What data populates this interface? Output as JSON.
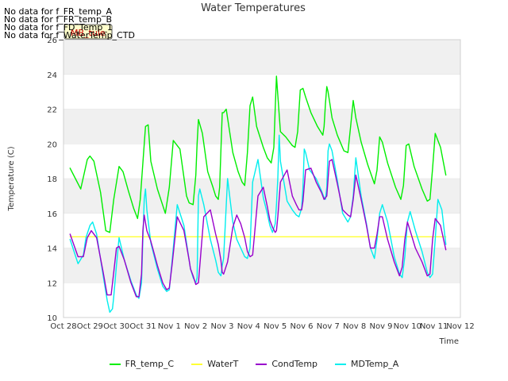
{
  "no_data_messages": [
    "No data for f_FR_temp_A",
    "No data for f_FR_temp_B",
    "No data for f_FD_Temp_1",
    "No data for f_WaterTemp_CTD"
  ],
  "tooltip_label": "MB_tule",
  "chart_data": {
    "type": "line",
    "title": "Water Temperatures",
    "xlabel": "Time",
    "ylabel": "Temperature (C)",
    "x_ticks": [
      "Oct 28",
      "Oct 29",
      "Oct 30",
      "Oct 31",
      "Nov 1",
      "Nov 2",
      "Nov 3",
      "Nov 4",
      "Nov 5",
      "Nov 6",
      "Nov 7",
      "Nov 8",
      "Nov 9",
      "Nov 10",
      "Nov 11",
      "Nov 12"
    ],
    "y_ticks": [
      10,
      12,
      14,
      16,
      18,
      20,
      22,
      24,
      26
    ],
    "xlim": [
      0,
      15
    ],
    "ylim": [
      10,
      26
    ],
    "grid": true,
    "legend_position": "bottom",
    "x_units": "days since Oct 28",
    "series": [
      {
        "name": "FR_temp_C",
        "color": "#00ee00",
        "x": [
          0.25,
          0.45,
          0.65,
          0.9,
          1.0,
          1.15,
          1.4,
          1.6,
          1.75,
          1.9,
          2.1,
          2.25,
          2.45,
          2.65,
          2.8,
          2.9,
          3.0,
          3.1,
          3.2,
          3.3,
          3.55,
          3.85,
          4.0,
          4.15,
          4.4,
          4.65,
          4.75,
          4.9,
          5.0,
          5.05,
          5.1,
          5.25,
          5.45,
          5.65,
          5.75,
          5.85,
          5.9,
          5.95,
          6.0,
          6.05,
          6.15,
          6.4,
          6.6,
          6.75,
          6.85,
          6.95,
          7.05,
          7.15,
          7.3,
          7.55,
          7.7,
          7.85,
          7.95,
          8.0,
          8.05,
          8.1,
          8.2,
          8.4,
          8.65,
          8.75,
          8.85,
          8.95,
          9.05,
          9.15,
          9.35,
          9.6,
          9.8,
          9.85,
          9.9,
          9.95,
          10.0,
          10.05,
          10.15,
          10.35,
          10.6,
          10.75,
          10.85,
          10.95,
          11.05,
          11.25,
          11.5,
          11.75,
          11.85,
          11.95,
          12.05,
          12.25,
          12.55,
          12.75,
          12.85,
          12.95,
          13.05,
          13.25,
          13.55,
          13.75,
          13.85,
          13.95,
          14.05,
          14.25,
          14.45
        ],
        "y": [
          18.6,
          18.0,
          17.4,
          19.1,
          19.3,
          19.0,
          17.2,
          15.0,
          14.9,
          16.8,
          18.7,
          18.4,
          17.3,
          16.3,
          15.7,
          16.8,
          18.9,
          21.0,
          21.1,
          19.0,
          17.4,
          16.0,
          17.5,
          20.2,
          19.7,
          17.0,
          16.6,
          16.5,
          18.2,
          20.0,
          21.4,
          20.6,
          18.4,
          17.5,
          17.0,
          16.8,
          17.5,
          19.6,
          21.8,
          21.8,
          22.0,
          19.5,
          18.4,
          17.8,
          17.6,
          19.5,
          22.2,
          22.7,
          21.0,
          19.8,
          19.2,
          18.9,
          19.8,
          22.0,
          23.9,
          22.8,
          20.7,
          20.4,
          19.9,
          19.8,
          20.7,
          23.1,
          23.2,
          22.7,
          21.8,
          21.0,
          20.5,
          21.0,
          22.3,
          23.3,
          23.0,
          22.5,
          21.5,
          20.5,
          19.6,
          19.5,
          21.0,
          22.5,
          21.5,
          20.1,
          18.8,
          17.7,
          18.5,
          20.4,
          20.1,
          18.9,
          17.5,
          16.8,
          17.6,
          19.9,
          20.0,
          18.7,
          17.4,
          16.7,
          16.8,
          18.6,
          20.6,
          19.8,
          18.2
        ]
      },
      {
        "name": "WaterT",
        "color": "#ffff33",
        "x": [
          0.25,
          14.45
        ],
        "y": [
          14.65,
          14.65
        ]
      },
      {
        "name": "CondTemp",
        "color": "#9900cc",
        "x": [
          0.25,
          0.55,
          0.75,
          0.9,
          1.05,
          1.25,
          1.5,
          1.65,
          1.8,
          1.9,
          2.0,
          2.1,
          2.3,
          2.55,
          2.75,
          2.85,
          2.95,
          3.0,
          3.05,
          3.15,
          3.3,
          3.55,
          3.75,
          3.9,
          4.0,
          4.1,
          4.3,
          4.55,
          4.75,
          4.8,
          4.9,
          5.0,
          5.1,
          5.3,
          5.55,
          5.75,
          5.85,
          5.95,
          6.0,
          6.05,
          6.2,
          6.4,
          6.55,
          6.7,
          6.85,
          6.95,
          7.05,
          7.15,
          7.35,
          7.55,
          7.7,
          7.8,
          7.9,
          8.0,
          8.05,
          8.1,
          8.2,
          8.45,
          8.65,
          8.8,
          8.9,
          9.0,
          9.05,
          9.15,
          9.35,
          9.55,
          9.75,
          9.85,
          9.95,
          10.05,
          10.15,
          10.35,
          10.55,
          10.75,
          10.85,
          10.95,
          11.05,
          11.25,
          11.45,
          11.6,
          11.75,
          11.85,
          11.95,
          12.05,
          12.25,
          12.5,
          12.7,
          12.8,
          12.9,
          13.0,
          13.1,
          13.3,
          13.55,
          13.75,
          13.85,
          13.95,
          14.05,
          14.25,
          14.45
        ],
        "y": [
          14.8,
          13.5,
          13.5,
          14.6,
          15.0,
          14.6,
          12.6,
          11.3,
          11.3,
          12.6,
          14.0,
          14.1,
          13.3,
          12.0,
          11.2,
          11.2,
          12.5,
          15.0,
          15.9,
          15.0,
          14.4,
          13.0,
          12.0,
          11.6,
          11.7,
          13.0,
          15.8,
          15.0,
          13.3,
          12.8,
          12.4,
          11.9,
          12.0,
          15.8,
          16.2,
          14.8,
          14.2,
          13.3,
          12.6,
          12.5,
          13.2,
          15.2,
          15.9,
          15.4,
          14.6,
          13.8,
          13.5,
          13.6,
          17.0,
          17.5,
          16.4,
          15.6,
          15.2,
          14.9,
          15.0,
          15.8,
          17.8,
          18.5,
          17.0,
          16.5,
          16.2,
          16.2,
          16.7,
          18.5,
          18.6,
          17.8,
          17.2,
          16.8,
          17.0,
          19.0,
          19.1,
          17.7,
          16.2,
          15.9,
          15.8,
          16.8,
          18.2,
          16.8,
          15.3,
          14.0,
          14.0,
          14.8,
          15.8,
          15.8,
          14.5,
          13.2,
          12.4,
          12.9,
          14.5,
          15.5,
          15.0,
          14.0,
          13.2,
          12.4,
          12.5,
          14.5,
          15.7,
          15.3,
          13.9
        ]
      },
      {
        "name": "MDTemp_A",
        "color": "#00eeee",
        "x": [
          0.25,
          0.55,
          0.75,
          0.85,
          1.0,
          1.1,
          1.25,
          1.5,
          1.65,
          1.75,
          1.85,
          1.9,
          2.0,
          2.1,
          2.3,
          2.55,
          2.75,
          2.85,
          2.95,
          3.0,
          3.05,
          3.1,
          3.15,
          3.3,
          3.55,
          3.75,
          3.9,
          4.0,
          4.1,
          4.3,
          4.55,
          4.75,
          4.8,
          4.9,
          5.0,
          5.05,
          5.1,
          5.15,
          5.3,
          5.55,
          5.75,
          5.85,
          5.95,
          6.0,
          6.05,
          6.2,
          6.4,
          6.55,
          6.7,
          6.85,
          6.95,
          7.05,
          7.15,
          7.35,
          7.55,
          7.7,
          7.8,
          7.9,
          8.0,
          8.05,
          8.1,
          8.15,
          8.2,
          8.45,
          8.65,
          8.8,
          8.9,
          9.0,
          9.05,
          9.1,
          9.15,
          9.3,
          9.55,
          9.75,
          9.85,
          9.9,
          9.95,
          10.0,
          10.05,
          10.15,
          10.35,
          10.55,
          10.75,
          10.85,
          10.95,
          11.05,
          11.25,
          11.45,
          11.6,
          11.75,
          11.85,
          11.95,
          12.05,
          12.25,
          12.5,
          12.7,
          12.8,
          12.9,
          13.0,
          13.1,
          13.3,
          13.55,
          13.75,
          13.85,
          13.95,
          14.05,
          14.15,
          14.3,
          14.45
        ],
        "y": [
          14.5,
          13.1,
          13.6,
          14.6,
          15.3,
          15.5,
          14.8,
          12.4,
          11.0,
          10.3,
          10.5,
          11.2,
          13.0,
          14.6,
          13.3,
          12.1,
          11.3,
          11.1,
          12.0,
          14.5,
          16.8,
          17.4,
          16.2,
          14.3,
          12.8,
          11.8,
          11.5,
          11.6,
          13.2,
          16.5,
          15.3,
          13.3,
          12.8,
          12.3,
          12.0,
          12.3,
          17.0,
          17.4,
          16.5,
          14.5,
          13.3,
          12.6,
          12.4,
          13.0,
          13.4,
          18.0,
          15.5,
          14.5,
          14.0,
          13.5,
          13.4,
          14.0,
          17.8,
          19.1,
          16.9,
          16.0,
          15.3,
          14.9,
          15.4,
          16.5,
          18.0,
          20.5,
          19.0,
          16.7,
          16.2,
          15.9,
          15.8,
          16.3,
          17.5,
          19.7,
          19.5,
          18.5,
          18.0,
          17.3,
          16.9,
          16.8,
          17.5,
          19.6,
          20.0,
          19.6,
          17.9,
          16.0,
          15.5,
          15.8,
          17.0,
          19.2,
          17.0,
          15.4,
          14.0,
          13.4,
          14.5,
          16.0,
          16.5,
          15.5,
          13.5,
          12.5,
          12.3,
          13.5,
          15.5,
          16.1,
          15.0,
          13.8,
          12.6,
          12.3,
          12.5,
          14.5,
          16.8,
          16.2,
          14.2
        ]
      }
    ]
  }
}
